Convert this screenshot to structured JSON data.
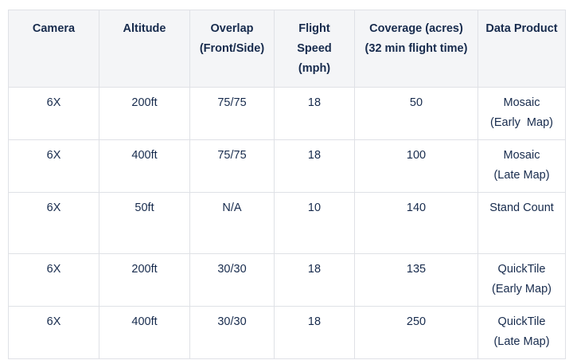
{
  "table": {
    "headers": [
      [
        "Camera"
      ],
      [
        "Altitude"
      ],
      [
        "Overlap",
        "(Front/Side)"
      ],
      [
        "Flight",
        "Speed",
        "(mph)"
      ],
      [
        "Coverage (acres)",
        "(32 min flight time)"
      ],
      [
        "Data Product"
      ]
    ],
    "rows": [
      [
        [
          "6X"
        ],
        [
          "200ft"
        ],
        [
          "75/75"
        ],
        [
          "18"
        ],
        [
          "50"
        ],
        [
          "Mosaic",
          "(Early  Map)"
        ]
      ],
      [
        [
          "6X"
        ],
        [
          "400ft"
        ],
        [
          "75/75"
        ],
        [
          "18"
        ],
        [
          "100"
        ],
        [
          "Mosaic",
          "(Late Map)"
        ]
      ],
      [
        [
          "6X"
        ],
        [
          "50ft"
        ],
        [
          "N/A"
        ],
        [
          "10"
        ],
        [
          "140"
        ],
        [
          "Stand Count"
        ]
      ],
      [
        [
          "6X"
        ],
        [
          "200ft"
        ],
        [
          "30/30"
        ],
        [
          "18"
        ],
        [
          "135"
        ],
        [
          "QuickTile",
          "(Early Map)"
        ]
      ],
      [
        [
          "6X"
        ],
        [
          "400ft"
        ],
        [
          "30/30"
        ],
        [
          "18"
        ],
        [
          "250"
        ],
        [
          "QuickTile",
          "(Late Map)"
        ]
      ]
    ]
  },
  "colors": {
    "header_bg": "#f4f5f7",
    "border": "#dfe1e6",
    "text": "#172b4d"
  }
}
